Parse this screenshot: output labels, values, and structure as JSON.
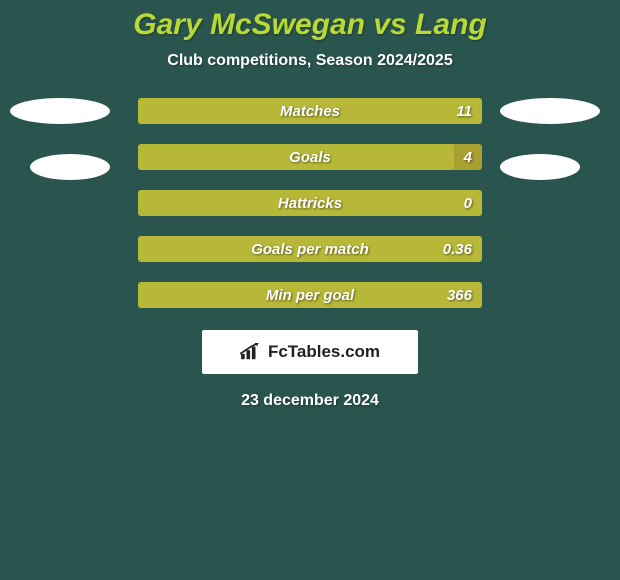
{
  "background_color": "#2a544e",
  "title": {
    "text": "Gary McSwegan vs Lang",
    "color": "#b8d933",
    "fontsize": 30
  },
  "subtitle": {
    "text": "Club competitions, Season 2024/2025",
    "fontsize": 16
  },
  "bars": {
    "track_color": "#a8a030",
    "fill_color": "#b8b838",
    "label_fontsize": 15,
    "value_fontsize": 15,
    "items": [
      {
        "label": "Matches",
        "value": "11",
        "fill_pct": 100
      },
      {
        "label": "Goals",
        "value": "4",
        "fill_pct": 92
      },
      {
        "label": "Hattricks",
        "value": "0",
        "fill_pct": 100
      },
      {
        "label": "Goals per match",
        "value": "0.36",
        "fill_pct": 100
      },
      {
        "label": "Min per goal",
        "value": "366",
        "fill_pct": 100
      }
    ]
  },
  "side_ellipses": {
    "color": "#ffffff",
    "left_count": 2,
    "right_count": 2
  },
  "branding": {
    "text": "FcTables.com",
    "icon_name": "barchart-icon"
  },
  "date": {
    "text": "23 december 2024",
    "fontsize": 16
  }
}
